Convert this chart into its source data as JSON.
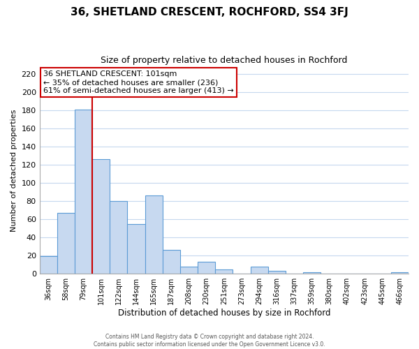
{
  "title": "36, SHETLAND CRESCENT, ROCHFORD, SS4 3FJ",
  "subtitle": "Size of property relative to detached houses in Rochford",
  "xlabel": "Distribution of detached houses by size in Rochford",
  "ylabel": "Number of detached properties",
  "bar_labels": [
    "36sqm",
    "58sqm",
    "79sqm",
    "101sqm",
    "122sqm",
    "144sqm",
    "165sqm",
    "187sqm",
    "208sqm",
    "230sqm",
    "251sqm",
    "273sqm",
    "294sqm",
    "316sqm",
    "337sqm",
    "359sqm",
    "380sqm",
    "402sqm",
    "423sqm",
    "445sqm",
    "466sqm"
  ],
  "bar_values": [
    19,
    67,
    181,
    126,
    80,
    55,
    86,
    26,
    8,
    13,
    5,
    0,
    8,
    3,
    0,
    2,
    0,
    0,
    0,
    0,
    2
  ],
  "bar_color": "#c7d9f0",
  "bar_edge_color": "#5b9bd5",
  "vline_color": "#cc0000",
  "ylim": [
    0,
    228
  ],
  "yticks": [
    0,
    20,
    40,
    60,
    80,
    100,
    120,
    140,
    160,
    180,
    200,
    220
  ],
  "annotation_line1": "36 SHETLAND CRESCENT: 101sqm",
  "annotation_line2": "← 35% of detached houses are smaller (236)",
  "annotation_line3": "61% of semi-detached houses are larger (413) →",
  "annotation_box_color": "#ffffff",
  "annotation_box_edge": "#cc0000",
  "footer_line1": "Contains HM Land Registry data © Crown copyright and database right 2024.",
  "footer_line2": "Contains public sector information licensed under the Open Government Licence v3.0.",
  "background_color": "#ffffff",
  "grid_color": "#c5d8ee"
}
